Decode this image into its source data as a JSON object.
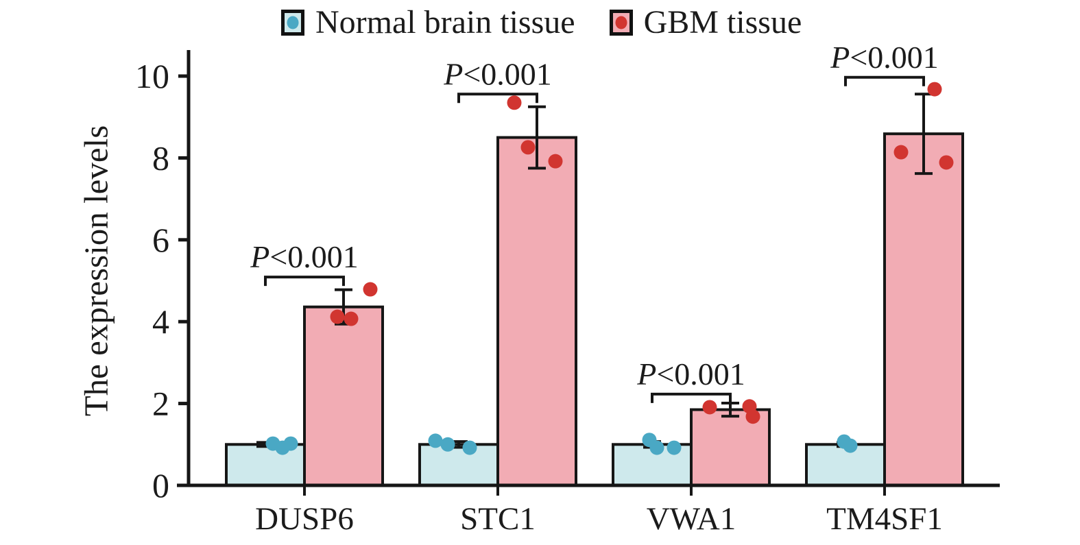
{
  "figure": {
    "y_axis_title": "The expression levels"
  },
  "legend": {
    "position": "top",
    "items": [
      {
        "label": "Normal brain tissue",
        "fill": "#cee9ec",
        "dot": "#4aa8c4"
      },
      {
        "label": "GBM tissue",
        "fill": "#f2acb4",
        "dot": "#d13530"
      }
    ]
  },
  "chart_data": {
    "type": "bar",
    "title": "",
    "xlabel": "",
    "ylabel": "The expression levels",
    "ylim": [
      0,
      10.6
    ],
    "yticks": [
      0,
      2,
      4,
      6,
      8,
      10
    ],
    "grid": false,
    "legend_position": "top",
    "categories": [
      "DUSP6",
      "STC1",
      "VWA1",
      "TM4SF1"
    ],
    "series": [
      {
        "name": "Normal brain tissue",
        "bar_fill": "#cee9ec",
        "point_color": "#4aa8c4",
        "values": [
          1.0,
          1.0,
          1.0,
          1.0
        ],
        "errors": [
          0.05,
          0.07,
          0.07,
          0.05
        ],
        "points": [
          [
            [
              -46,
              1.02
            ],
            [
              -32,
              0.92
            ],
            [
              -20,
              1.02
            ]
          ],
          [
            [
              -91,
              1.09
            ],
            [
              -73,
              1.0
            ],
            [
              -41,
              0.92
            ]
          ],
          [
            [
              -61,
              1.11
            ],
            [
              -50,
              0.92
            ],
            [
              -25,
              0.92
            ]
          ],
          [
            [
              -59,
              1.07
            ],
            [
              -50,
              0.97
            ]
          ]
        ]
      },
      {
        "name": "GBM tissue",
        "bar_fill": "#f2acb4",
        "point_color": "#d13530",
        "values": [
          4.36,
          8.5,
          1.85,
          8.59
        ],
        "errors": [
          0.42,
          0.75,
          0.16,
          0.97
        ],
        "points": [
          [
            [
              48,
              4.12
            ],
            [
              68,
              4.07
            ],
            [
              96,
              4.79
            ]
          ],
          [
            [
              24,
              9.35
            ],
            [
              44,
              8.26
            ],
            [
              84,
              7.92
            ]
          ],
          [
            [
              27,
              1.91
            ],
            [
              85,
              1.93
            ],
            [
              90,
              1.68
            ]
          ],
          [
            [
              24,
              8.14
            ],
            [
              73,
              9.68
            ],
            [
              90,
              7.89
            ]
          ]
        ]
      }
    ],
    "significance": [
      {
        "label": "P<0.001",
        "height": 5.09
      },
      {
        "label": "P<0.001",
        "height": 9.56
      },
      {
        "label": "P<0.001",
        "height": 2.23
      },
      {
        "label": "P<0.001",
        "height": 9.97
      }
    ]
  }
}
